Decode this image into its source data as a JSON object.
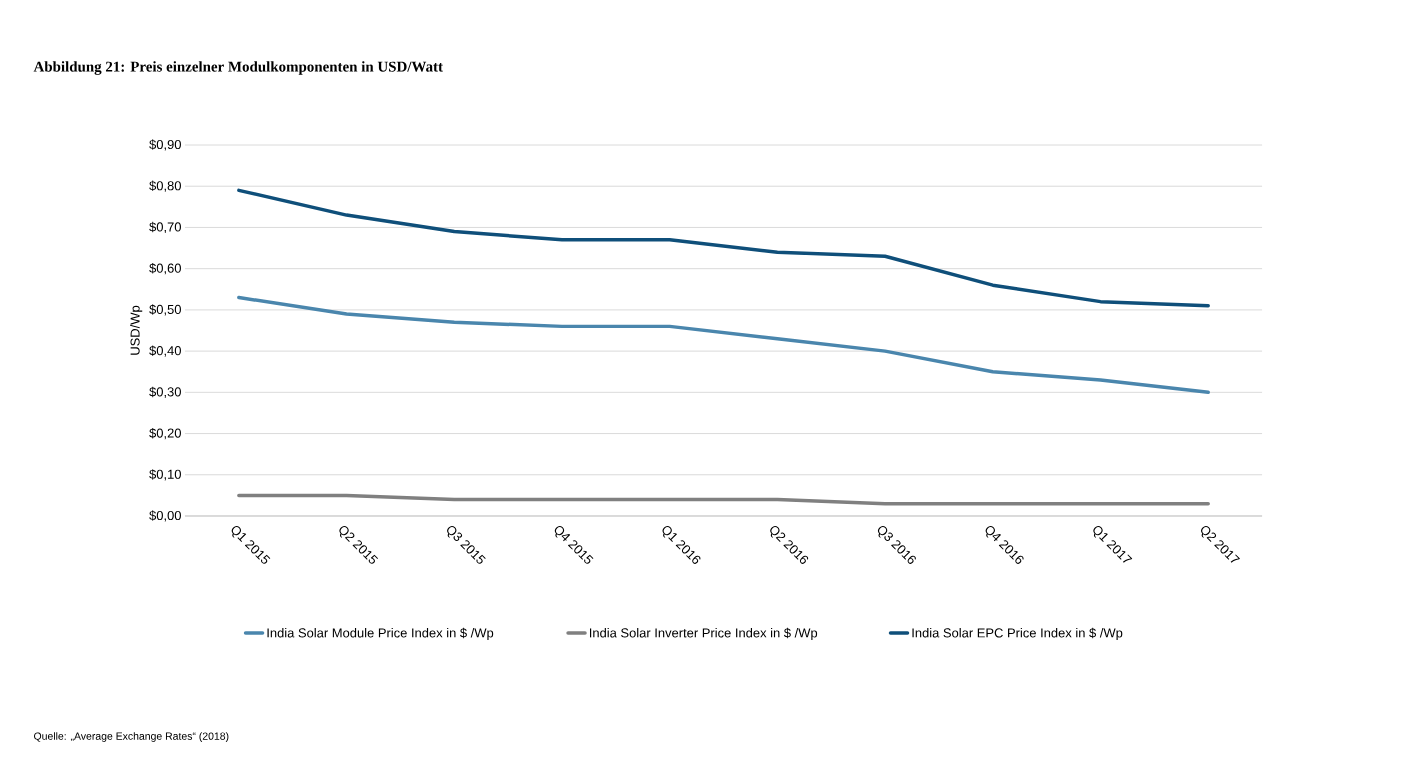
{
  "chart_data": {
    "type": "line",
    "title": "Abbildung 21: Preis einzelner Modulkomponenten in USD/Watt",
    "ylabel": "USD/Wp",
    "categories": [
      "Q1 2015",
      "Q2 2015",
      "Q3 2015",
      "Q4 2015",
      "Q1 2016",
      "Q2 2016",
      "Q3 2016",
      "Q4 2016",
      "Q1 2017",
      "Q2 2017"
    ],
    "series": [
      {
        "name": "India Solar Module Price Index in $ /Wp",
        "color": "#4a86ad",
        "values": [
          0.53,
          0.49,
          0.47,
          0.46,
          0.46,
          0.43,
          0.4,
          0.35,
          0.33,
          0.3
        ]
      },
      {
        "name": "India Solar Inverter Price Index in $ /Wp",
        "color": "#808080",
        "values": [
          0.05,
          0.05,
          0.04,
          0.04,
          0.04,
          0.04,
          0.03,
          0.03,
          0.03,
          0.03
        ]
      },
      {
        "name": "India Solar EPC Price Index in $ /Wp",
        "color": "#0f4f7a",
        "values": [
          0.79,
          0.73,
          0.69,
          0.67,
          0.67,
          0.64,
          0.63,
          0.56,
          0.52,
          0.51
        ]
      }
    ],
    "ylim": [
      0,
      0.9
    ],
    "yticks": [
      {
        "value": 0,
        "label": "$0,00"
      },
      {
        "value": 0.1,
        "label": "$0,10"
      },
      {
        "value": 0.2,
        "label": "$0,20"
      },
      {
        "value": 0.3,
        "label": "$0,30"
      },
      {
        "value": 0.4,
        "label": "$0,40"
      },
      {
        "value": 0.5,
        "label": "$0,50"
      },
      {
        "value": 0.6,
        "label": "$0,60"
      },
      {
        "value": 0.7,
        "label": "$0,70"
      },
      {
        "value": 0.8,
        "label": "$0,80"
      },
      {
        "value": 0.9,
        "label": "$0,90"
      }
    ],
    "grid": "y",
    "legend": "bottom",
    "marker": "none",
    "line_style": "solid",
    "annotations": [
      "Quelle: „Average Exchange Rates“ (2018)"
    ]
  }
}
